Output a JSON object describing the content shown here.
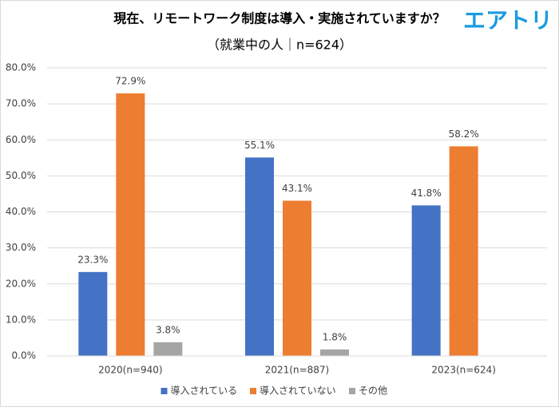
{
  "logo": "エアトリ",
  "chart_data": {
    "type": "bar",
    "title": "現在、リモートワーク制度は導入・実施されていますか？",
    "subtitle": "（就業中の人｜n=624）",
    "categories": [
      "2020(n=940)",
      "2021(n=887)",
      "2023(n=624)"
    ],
    "series": [
      {
        "name": "導入されている",
        "color": "#4472c4",
        "values": [
          23.3,
          55.1,
          41.8
        ],
        "value_labels": [
          "23.3%",
          "55.1%",
          "41.8%"
        ]
      },
      {
        "name": "導入されていない",
        "color": "#ed7d31",
        "values": [
          72.9,
          43.1,
          58.2
        ],
        "value_labels": [
          "72.9%",
          "43.1%",
          "58.2%"
        ]
      },
      {
        "name": "その他",
        "color": "#a5a5a5",
        "values": [
          3.8,
          1.8,
          null
        ],
        "value_labels": [
          "3.8%",
          "1.8%",
          null
        ]
      }
    ],
    "ylim": [
      0,
      80
    ],
    "yticks": [
      {
        "value": 0,
        "label": "0.0%"
      },
      {
        "value": 10,
        "label": "10.0%"
      },
      {
        "value": 20,
        "label": "20.0%"
      },
      {
        "value": 30,
        "label": "30.0%"
      },
      {
        "value": 40,
        "label": "40.0%"
      },
      {
        "value": 50,
        "label": "50.0%"
      },
      {
        "value": 60,
        "label": "60.0%"
      },
      {
        "value": 70,
        "label": "70.0%"
      },
      {
        "value": 80,
        "label": "80.0%"
      }
    ],
    "grid": true,
    "legend": "bottom"
  }
}
